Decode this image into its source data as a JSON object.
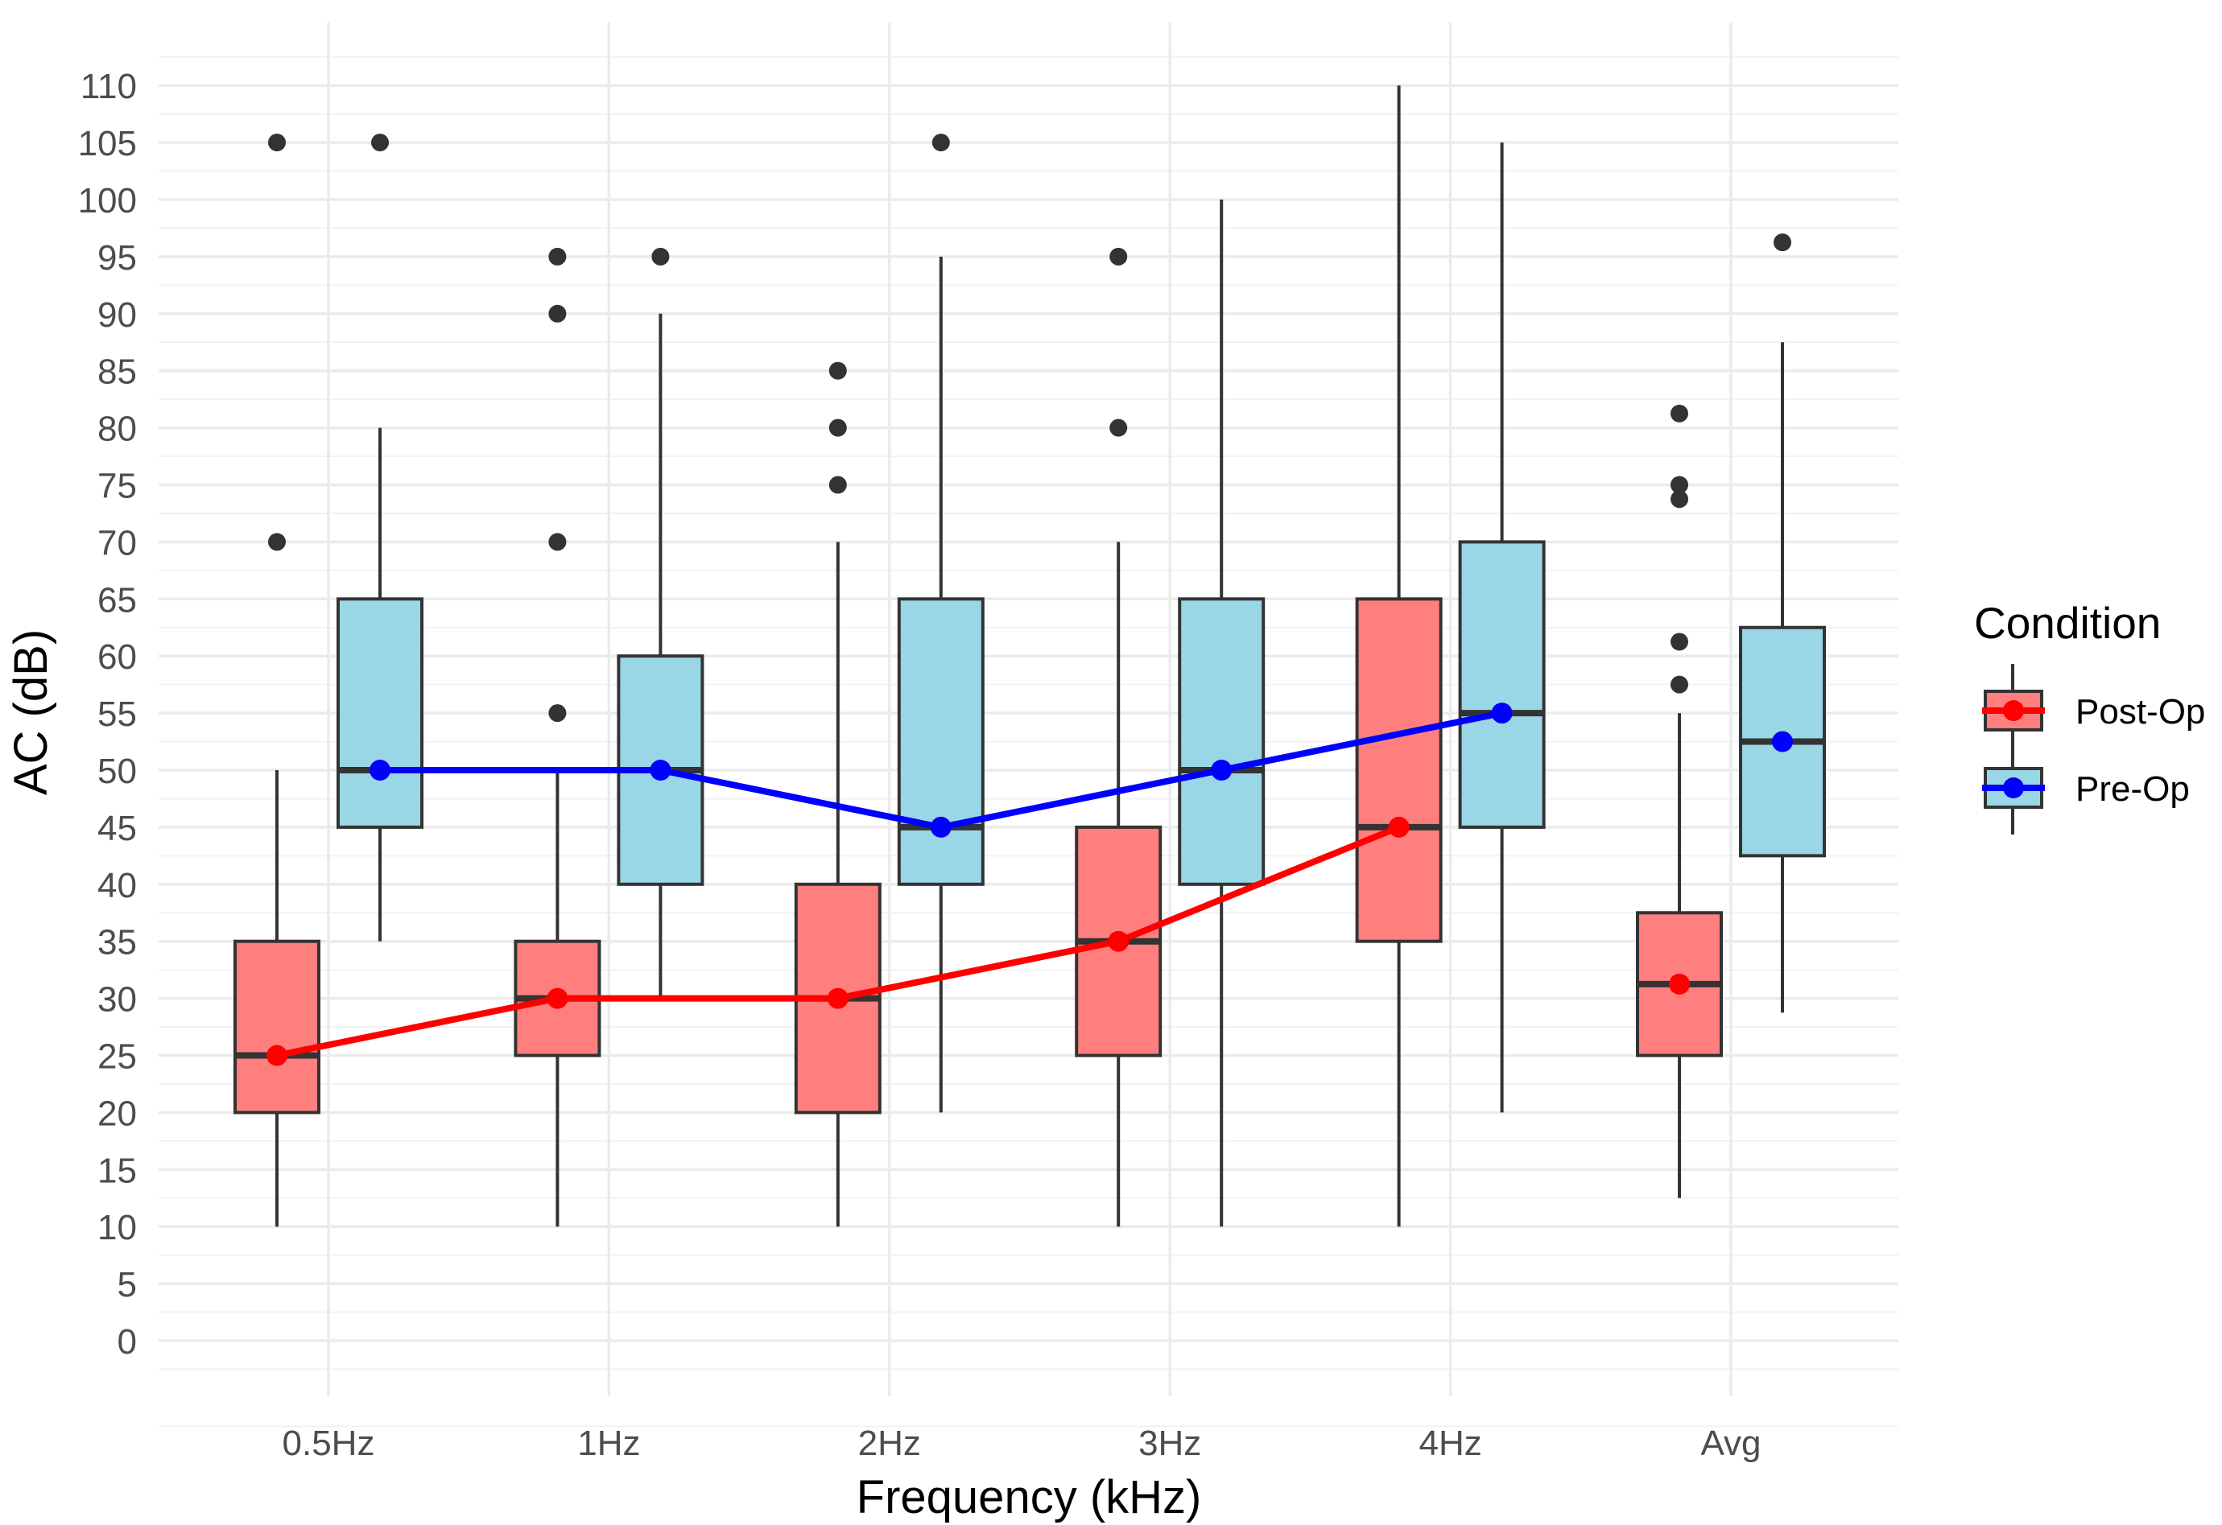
{
  "chart_data": {
    "type": "box",
    "title": "",
    "xlabel": "Frequency (kHz)",
    "ylabel": "AC (dB)",
    "ylim": [
      -5,
      115
    ],
    "yticks": [
      0,
      5,
      10,
      15,
      20,
      25,
      30,
      35,
      40,
      45,
      50,
      55,
      60,
      65,
      70,
      75,
      80,
      85,
      90,
      95,
      100,
      105,
      110
    ],
    "categories": [
      "0.5Hz",
      "1Hz",
      "2Hz",
      "3Hz",
      "4Hz",
      "Avg"
    ],
    "grid": true,
    "legend": {
      "title": "Condition",
      "position": "right"
    },
    "series": [
      {
        "name": "Post-Op",
        "fill": "#ff7f7f",
        "line_color": "#ff0000",
        "boxes": [
          {
            "category": "0.5Hz",
            "whisker_low": 10,
            "q1": 20,
            "median": 25,
            "q3": 35,
            "whisker_high": 50,
            "outliers": [
              70,
              105
            ]
          },
          {
            "category": "1Hz",
            "whisker_low": 10,
            "q1": 25,
            "median": 30,
            "q3": 35,
            "whisker_high": 50,
            "outliers": [
              55,
              70,
              90,
              95
            ]
          },
          {
            "category": "2Hz",
            "whisker_low": 10,
            "q1": 20,
            "median": 30,
            "q3": 40,
            "whisker_high": 70,
            "outliers": [
              75,
              80,
              85
            ]
          },
          {
            "category": "3Hz",
            "whisker_low": 10,
            "q1": 25,
            "median": 35,
            "q3": 45,
            "whisker_high": 70,
            "outliers": [
              80,
              95
            ]
          },
          {
            "category": "4Hz",
            "whisker_low": 10,
            "q1": 35,
            "median": 45,
            "q3": 65,
            "whisker_high": 110,
            "outliers": []
          },
          {
            "category": "Avg",
            "whisker_low": 12.5,
            "q1": 25,
            "median": 31.25,
            "q3": 37.5,
            "whisker_high": 55,
            "outliers": [
              57.5,
              61.25,
              73.75,
              75,
              81.25
            ]
          }
        ],
        "line": [
          25,
          30,
          30,
          35,
          45,
          31.25
        ]
      },
      {
        "name": "Pre-Op",
        "fill": "#9ad7e6",
        "line_color": "#0000ff",
        "boxes": [
          {
            "category": "0.5Hz",
            "whisker_low": 35,
            "q1": 45,
            "median": 50,
            "q3": 65,
            "whisker_high": 80,
            "outliers": [
              105
            ]
          },
          {
            "category": "1Hz",
            "whisker_low": 30,
            "q1": 40,
            "median": 50,
            "q3": 60,
            "whisker_high": 90,
            "outliers": [
              95
            ]
          },
          {
            "category": "2Hz",
            "whisker_low": 20,
            "q1": 40,
            "median": 45,
            "q3": 65,
            "whisker_high": 95,
            "outliers": [
              105
            ]
          },
          {
            "category": "3Hz",
            "whisker_low": 10,
            "q1": 40,
            "median": 50,
            "q3": 65,
            "whisker_high": 100,
            "outliers": []
          },
          {
            "category": "4Hz",
            "whisker_low": 20,
            "q1": 45,
            "median": 55,
            "q3": 70,
            "whisker_high": 105,
            "outliers": []
          },
          {
            "category": "Avg",
            "whisker_low": 28.75,
            "q1": 42.5,
            "median": 52.5,
            "q3": 62.5,
            "whisker_high": 87.5,
            "outliers": [
              96.25
            ]
          }
        ],
        "line": [
          50,
          50,
          45,
          50,
          55,
          52.5
        ]
      }
    ]
  }
}
